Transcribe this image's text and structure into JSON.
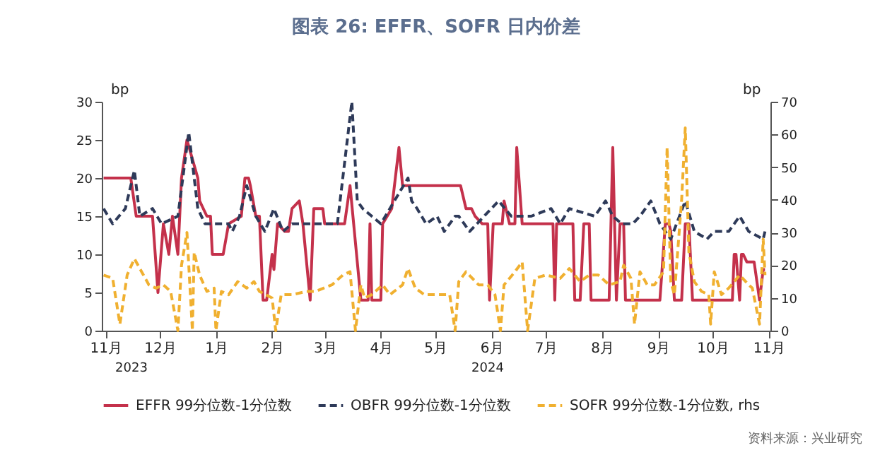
{
  "chart_data": {
    "type": "line",
    "title": "图表 26: EFFR、SOFR 日内价差",
    "ylabel": "bp",
    "y2label": "bp",
    "annotations": [
      "2023",
      "2024",
      "资料来源：兴业研究"
    ],
    "legend": "bottom",
    "marker": "none",
    "xlim": [
      "2023-11-13",
      "2024-11-16"
    ],
    "xticks": [
      {
        "value": "2023-11-15",
        "label": "11月"
      },
      {
        "value": "2023-12-15",
        "label": "12月"
      },
      {
        "value": "2024-01-15",
        "label": "1月"
      },
      {
        "value": "2024-02-15",
        "label": "2月"
      },
      {
        "value": "2024-03-15",
        "label": "3月"
      },
      {
        "value": "2024-04-15",
        "label": "4月"
      },
      {
        "value": "2024-05-15",
        "label": "5月"
      },
      {
        "value": "2024-06-15",
        "label": "6月"
      },
      {
        "value": "2024-07-15",
        "label": "7月"
      },
      {
        "value": "2024-08-15",
        "label": "8月"
      },
      {
        "value": "2024-09-15",
        "label": "9月"
      },
      {
        "value": "2024-10-15",
        "label": "10月"
      },
      {
        "value": "2024-11-15",
        "label": "11月"
      }
    ],
    "ylim": [
      0,
      30
    ],
    "yticks": [
      0,
      5,
      10,
      15,
      20,
      25,
      30
    ],
    "y2lim": [
      0,
      70
    ],
    "y2ticks": [
      0,
      10,
      20,
      30,
      40,
      50,
      60,
      70
    ],
    "series": [
      {
        "name": "EFFR 99分位数-1分位数",
        "color": "#c4314b",
        "line_style": "solid",
        "x": [
          "2023-11-14",
          "2023-11-29",
          "2023-12-02",
          "2023-12-11",
          "2023-12-14",
          "2023-12-17",
          "2023-12-20",
          "2023-12-22",
          "2023-12-25",
          "2023-12-27",
          "2023-12-30",
          "2024-01-05",
          "2024-01-06",
          "2024-01-10",
          "2024-01-12",
          "2024-01-13",
          "2024-01-19",
          "2024-01-22",
          "2024-01-29",
          "2024-01-31",
          "2024-02-02",
          "2024-02-03",
          "2024-02-06",
          "2024-02-08",
          "2024-02-10",
          "2024-02-12",
          "2024-02-15",
          "2024-02-16",
          "2024-02-18",
          "2024-02-22",
          "2024-02-24",
          "2024-02-26",
          "2024-03-01",
          "2024-03-03",
          "2024-03-07",
          "2024-03-09",
          "2024-03-14",
          "2024-03-15",
          "2024-03-26",
          "2024-03-29",
          "2024-04-04",
          "2024-04-08",
          "2024-04-09",
          "2024-04-10",
          "2024-04-15",
          "2024-04-16",
          "2024-04-21",
          "2024-04-23",
          "2024-04-25",
          "2024-04-27",
          "2024-05-29",
          "2024-06-01",
          "2024-06-04",
          "2024-06-06",
          "2024-06-10",
          "2024-06-13",
          "2024-06-14",
          "2024-06-16",
          "2024-06-21",
          "2024-06-22",
          "2024-06-25",
          "2024-06-28",
          "2024-06-29",
          "2024-07-02",
          "2024-07-19",
          "2024-07-20",
          "2024-07-21",
          "2024-07-30",
          "2024-07-31",
          "2024-08-03",
          "2024-08-05",
          "2024-08-08",
          "2024-08-09",
          "2024-08-19",
          "2024-08-21",
          "2024-08-23",
          "2024-08-25",
          "2024-08-27",
          "2024-08-28",
          "2024-09-16",
          "2024-09-19",
          "2024-09-21",
          "2024-09-22",
          "2024-09-24",
          "2024-09-28",
          "2024-09-30",
          "2024-10-02",
          "2024-10-04",
          "2024-10-26",
          "2024-10-27",
          "2024-10-28",
          "2024-10-30",
          "2024-10-31",
          "2024-11-01",
          "2024-11-03",
          "2024-11-07",
          "2024-11-10",
          "2024-11-12",
          "2024-11-13"
        ],
        "values": [
          20,
          20,
          15,
          15,
          5,
          14,
          10,
          15,
          10,
          20,
          25,
          20,
          17,
          15,
          15,
          10,
          10,
          14,
          15,
          20,
          20,
          19,
          15,
          15,
          4,
          4,
          10,
          8,
          14,
          13,
          13,
          16,
          17,
          14,
          4,
          16,
          16,
          14,
          14,
          19,
          4,
          4,
          14,
          4,
          4,
          14,
          16,
          20,
          24,
          19,
          19,
          16,
          16,
          15,
          14,
          14,
          4,
          14,
          14,
          17,
          14,
          14,
          24,
          14,
          14,
          4,
          14,
          14,
          4,
          4,
          14,
          14,
          4,
          4,
          24,
          4,
          14,
          14,
          4,
          4,
          14,
          14,
          13,
          4,
          4,
          14,
          14,
          4,
          4,
          10,
          10,
          4,
          10,
          10,
          9,
          9,
          4,
          8,
          8
        ]
      },
      {
        "name": "OBFR 99分位数-1分位数",
        "color": "#2e3a59",
        "line_style": "dashed",
        "x": [
          "2023-11-14",
          "2023-11-19",
          "2023-11-26",
          "2023-12-01",
          "2023-12-04",
          "2023-12-11",
          "2023-12-16",
          "2023-12-25",
          "2023-12-31",
          "2024-01-05",
          "2024-01-09",
          "2024-01-22",
          "2024-01-24",
          "2024-01-28",
          "2024-02-01",
          "2024-02-06",
          "2024-02-11",
          "2024-02-16",
          "2024-02-21",
          "2024-02-26",
          "2024-03-22",
          "2024-03-30",
          "2024-04-02",
          "2024-04-05",
          "2024-04-10",
          "2024-04-15",
          "2024-04-20",
          "2024-04-25",
          "2024-04-30",
          "2024-05-02",
          "2024-05-05",
          "2024-05-10",
          "2024-05-16",
          "2024-05-20",
          "2024-05-26",
          "2024-05-28",
          "2024-06-03",
          "2024-06-11",
          "2024-06-19",
          "2024-06-26",
          "2024-07-07",
          "2024-07-18",
          "2024-07-23",
          "2024-07-28",
          "2024-08-11",
          "2024-08-17",
          "2024-08-21",
          "2024-08-26",
          "2024-09-01",
          "2024-09-05",
          "2024-09-11",
          "2024-09-16",
          "2024-09-22",
          "2024-09-30",
          "2024-10-05",
          "2024-10-12",
          "2024-10-16",
          "2024-10-24",
          "2024-10-30",
          "2024-11-04",
          "2024-11-12",
          "2024-11-13"
        ],
        "values": [
          16,
          14,
          16,
          21,
          15,
          16,
          14,
          15,
          26,
          16,
          14,
          14,
          13,
          15,
          19,
          15,
          13,
          16,
          13,
          14,
          14,
          30,
          17,
          16,
          15,
          14,
          16,
          18,
          20,
          17,
          16,
          14,
          15,
          13,
          15,
          15,
          13,
          15,
          17,
          15,
          15,
          16,
          14,
          16,
          15,
          17,
          15,
          14,
          14,
          15,
          17,
          14,
          12,
          17,
          13,
          12,
          13,
          13,
          15,
          13,
          12,
          13
        ]
      },
      {
        "name": "SOFR 99分位数-1分位数, rhs",
        "color": "#f0b030",
        "line_style": "dashed",
        "axis": "y2",
        "x": [
          "2023-11-14",
          "2023-11-19",
          "2023-11-23",
          "2023-11-27",
          "2023-12-01",
          "2023-12-05",
          "2023-12-09",
          "2023-12-13",
          "2023-12-17",
          "2023-12-21",
          "2023-12-25",
          "2023-12-27",
          "2023-12-30",
          "2024-01-02",
          "2024-01-03",
          "2024-01-06",
          "2024-01-10",
          "2024-01-14",
          "2024-01-15",
          "2024-01-18",
          "2024-01-22",
          "2024-01-27",
          "2024-02-01",
          "2024-02-05",
          "2024-02-08",
          "2024-02-15",
          "2024-02-17",
          "2024-02-20",
          "2024-02-26",
          "2024-03-05",
          "2024-03-10",
          "2024-03-19",
          "2024-03-25",
          "2024-03-29",
          "2024-04-01",
          "2024-04-04",
          "2024-04-06",
          "2024-04-10",
          "2024-04-16",
          "2024-04-20",
          "2024-04-27",
          "2024-04-30",
          "2024-05-04",
          "2024-05-09",
          "2024-05-16",
          "2024-05-23",
          "2024-05-26",
          "2024-05-28",
          "2024-06-01",
          "2024-06-08",
          "2024-06-13",
          "2024-06-17",
          "2024-06-20",
          "2024-06-22",
          "2024-06-28",
          "2024-07-02",
          "2024-07-05",
          "2024-07-09",
          "2024-07-15",
          "2024-07-23",
          "2024-07-28",
          "2024-08-03",
          "2024-08-08",
          "2024-08-13",
          "2024-08-19",
          "2024-08-25",
          "2024-08-27",
          "2024-08-31",
          "2024-09-02",
          "2024-09-05",
          "2024-09-09",
          "2024-09-13",
          "2024-09-18",
          "2024-09-20",
          "2024-09-22",
          "2024-09-24",
          "2024-09-28",
          "2024-09-30",
          "2024-10-02",
          "2024-10-05",
          "2024-10-09",
          "2024-10-13",
          "2024-10-14",
          "2024-10-16",
          "2024-10-20",
          "2024-10-24",
          "2024-10-30",
          "2024-11-04",
          "2024-11-06",
          "2024-11-10",
          "2024-11-12",
          "2024-11-13"
        ],
        "values": [
          17,
          16,
          2,
          17,
          22,
          18,
          14,
          13,
          14,
          12,
          0,
          20,
          30,
          0,
          24,
          17,
          12,
          13,
          0,
          12,
          11,
          15,
          13,
          15,
          12,
          10,
          0,
          11,
          11,
          12,
          12,
          14,
          17,
          18,
          0,
          14,
          10,
          11,
          14,
          11,
          14,
          19,
          13,
          11,
          11,
          11,
          0,
          15,
          18,
          14,
          14,
          11,
          0,
          14,
          18,
          21,
          0,
          16,
          17,
          16,
          19,
          15,
          17,
          17,
          14,
          15,
          20,
          16,
          2,
          18,
          14,
          14,
          18,
          56,
          15,
          11,
          40,
          62,
          24,
          15,
          12,
          11,
          2,
          18,
          11,
          13,
          17,
          14,
          13,
          2,
          28,
          17
        ]
      }
    ]
  }
}
